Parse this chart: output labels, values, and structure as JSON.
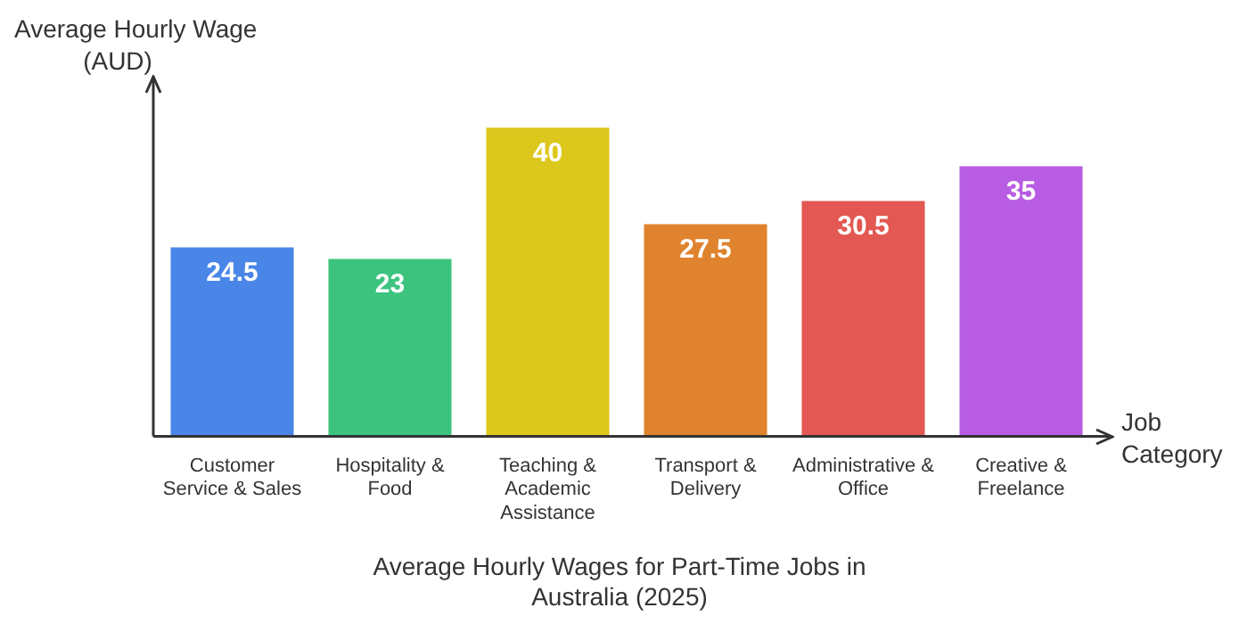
{
  "chart_data": {
    "type": "bar",
    "title": "Average Hourly Wages for Part-Time Jobs in Australia (2025)",
    "ylabel": "Average Hourly Wage (AUD)",
    "xlabel": "Job Category",
    "categories": [
      "Customer Service & Sales",
      "Hospitality & Food",
      "Teaching & Academic Assistance",
      "Transport & Delivery",
      "Administrative & Office",
      "Creative & Freelance"
    ],
    "values": [
      24.5,
      23,
      40,
      27.5,
      30.5,
      35
    ],
    "colors": [
      "#4a86e8",
      "#3cc47e",
      "#dcc81c",
      "#e0832e",
      "#e35852",
      "#b85de3"
    ],
    "tick_labels": "x",
    "grid": false,
    "legend": false,
    "data_labels": true
  }
}
